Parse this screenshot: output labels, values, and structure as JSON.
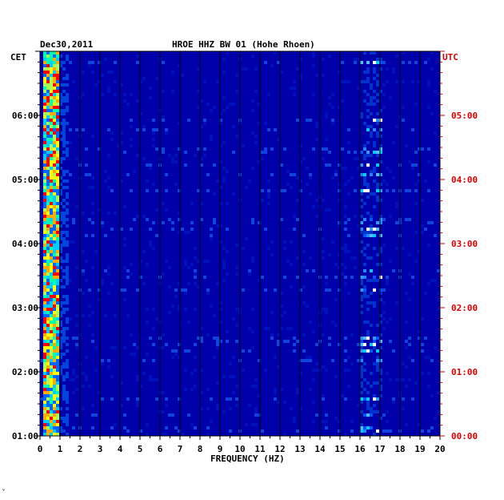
{
  "header": {
    "date": "Dec30,2011",
    "station": "HROE HHZ BW 01 (Hohe Rhoen)",
    "left_zone": "CET",
    "right_zone": "UTC"
  },
  "footer_mark": "ᵛ",
  "colors": {
    "background": "#0000aa",
    "utc_label": "#dd0000",
    "axis": "#000000"
  },
  "chart_data": {
    "type": "heatmap",
    "xlabel": "FREQUENCY (HZ)",
    "xlim": [
      0,
      20
    ],
    "x_ticks": [
      "0",
      "1",
      "2",
      "3",
      "4",
      "5",
      "6",
      "7",
      "8",
      "9",
      "10",
      "11",
      "12",
      "13",
      "14",
      "15",
      "16",
      "17",
      "18",
      "19",
      "20"
    ],
    "y_ticks_cet": [
      "06:00",
      "05:00",
      "04:00",
      "03:00",
      "02:00",
      "01:00"
    ],
    "y_ticks_utc": [
      "05:00",
      "04:00",
      "03:00",
      "02:00",
      "01:00",
      "00:00"
    ],
    "time_range_cet_hours": [
      1.0,
      7.0
    ],
    "bands": [
      {
        "f_from": 0.1,
        "f_to": 0.9,
        "level": "high"
      },
      {
        "f_from": 15.9,
        "f_to": 17.1,
        "level": "medium"
      }
    ]
  }
}
